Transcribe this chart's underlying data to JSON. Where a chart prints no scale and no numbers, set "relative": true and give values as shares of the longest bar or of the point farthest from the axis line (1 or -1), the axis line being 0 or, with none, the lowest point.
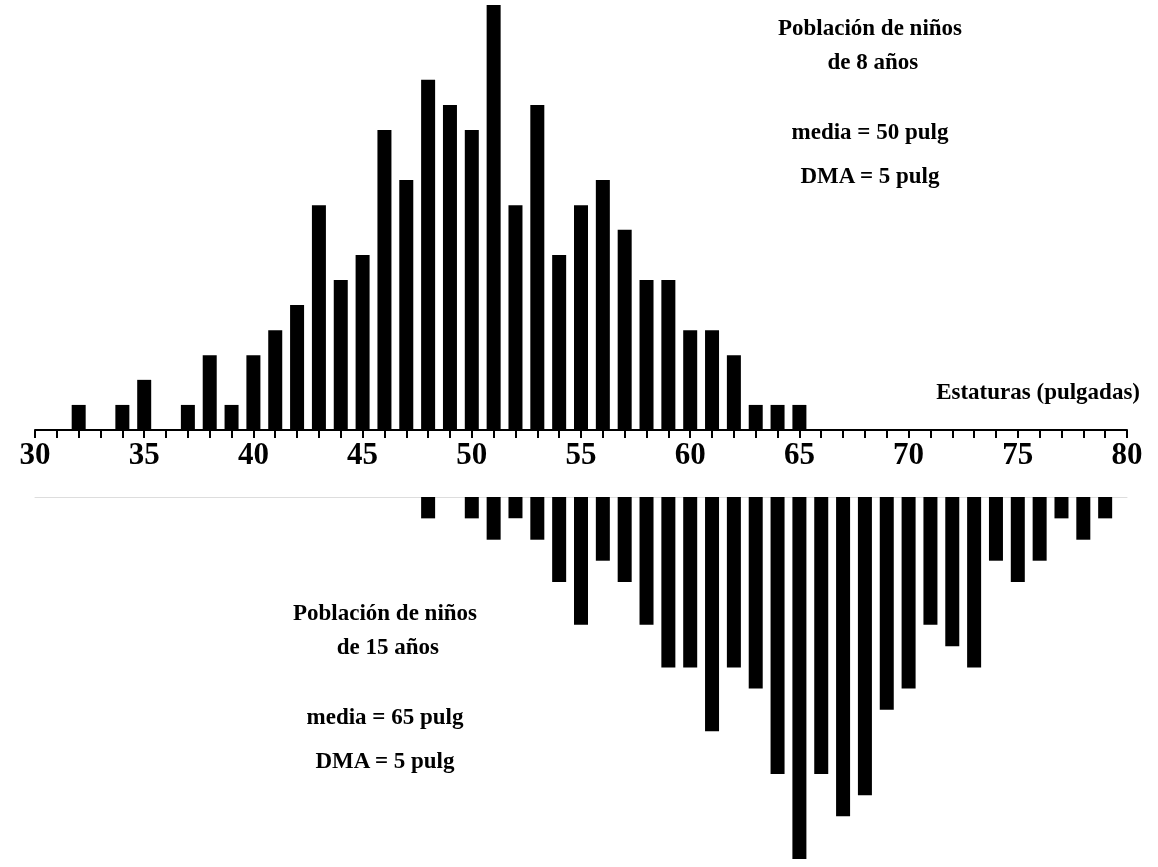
{
  "chart_data": [
    {
      "type": "bar",
      "relative": true,
      "xlabel": "Estaturas (pulgadas)",
      "xlim": [
        30,
        80
      ],
      "xticks": [
        30,
        {
          "value": 31,
          "label": null
        },
        {
          "value": 32,
          "label": null
        },
        {
          "value": 33,
          "label": null
        },
        {
          "value": 34,
          "label": null
        },
        35,
        {
          "value": 36,
          "label": null
        },
        {
          "value": 37,
          "label": null
        },
        {
          "value": 38,
          "label": null
        },
        {
          "value": 39,
          "label": null
        },
        40,
        {
          "value": 41,
          "label": null
        },
        {
          "value": 42,
          "label": null
        },
        {
          "value": 43,
          "label": null
        },
        {
          "value": 44,
          "label": null
        },
        45,
        {
          "value": 46,
          "label": null
        },
        {
          "value": 47,
          "label": null
        },
        {
          "value": 48,
          "label": null
        },
        {
          "value": 49,
          "label": null
        },
        50,
        {
          "value": 51,
          "label": null
        },
        {
          "value": 52,
          "label": null
        },
        {
          "value": 53,
          "label": null
        },
        {
          "value": 54,
          "label": null
        },
        55,
        {
          "value": 56,
          "label": null
        },
        {
          "value": 57,
          "label": null
        },
        {
          "value": 58,
          "label": null
        },
        {
          "value": 59,
          "label": null
        },
        60,
        {
          "value": 61,
          "label": null
        },
        {
          "value": 62,
          "label": null
        },
        {
          "value": 63,
          "label": null
        },
        {
          "value": 64,
          "label": null
        },
        65,
        {
          "value": 66,
          "label": null
        },
        {
          "value": 67,
          "label": null
        },
        {
          "value": 68,
          "label": null
        },
        {
          "value": 69,
          "label": null
        },
        70,
        {
          "value": 71,
          "label": null
        },
        {
          "value": 72,
          "label": null
        },
        {
          "value": 73,
          "label": null
        },
        {
          "value": 74,
          "label": null
        },
        75,
        {
          "value": 76,
          "label": null
        },
        {
          "value": 77,
          "label": null
        },
        {
          "value": 78,
          "label": null
        },
        {
          "value": 79,
          "label": null
        },
        80
      ],
      "annotations": [
        "Población de niños de 8 años",
        "media = 50 pulg",
        "DMA = 5 pulg"
      ],
      "series": [
        {
          "color": "#000000",
          "x": [
            32,
            34,
            35,
            37,
            38,
            39,
            40,
            41,
            42,
            43,
            44,
            45,
            46,
            47,
            48,
            49,
            50,
            51,
            52,
            53,
            54,
            55,
            56,
            57,
            58,
            59,
            60,
            61,
            62,
            63,
            64,
            65
          ],
          "values": [
            0.059,
            0.059,
            0.118,
            0.059,
            0.176,
            0.059,
            0.176,
            0.235,
            0.294,
            0.529,
            0.353,
            0.412,
            0.706,
            0.588,
            0.824,
            0.765,
            0.706,
            1,
            0.529,
            0.765,
            0.412,
            0.529,
            0.588,
            0.471,
            0.353,
            0.353,
            0.235,
            0.235,
            0.176,
            0.059,
            0.059,
            0.059
          ]
        }
      ]
    },
    {
      "type": "bar",
      "relative": true,
      "xlim": [
        30,
        80
      ],
      "tick_labels": false,
      "annotations": [
        "Población de niños de 15 años",
        "media = 65 pulg",
        "DMA = 5 pulg"
      ],
      "series": [
        {
          "color": "#000000",
          "x": [
            48,
            50,
            51,
            52,
            53,
            54,
            55,
            56,
            57,
            58,
            59,
            60,
            61,
            62,
            63,
            64,
            65,
            66,
            67,
            68,
            69,
            70,
            71,
            72,
            73,
            74,
            75,
            76,
            77,
            78,
            79
          ],
          "values": [
            -0.059,
            -0.059,
            -0.118,
            -0.059,
            -0.118,
            -0.235,
            -0.353,
            -0.176,
            -0.235,
            -0.353,
            -0.471,
            -0.471,
            -0.647,
            -0.471,
            -0.529,
            -0.765,
            -1,
            -0.765,
            -0.882,
            -0.824,
            -0.588,
            -0.529,
            -0.353,
            -0.412,
            -0.471,
            -0.176,
            -0.235,
            -0.176,
            -0.059,
            -0.118,
            -0.059
          ]
        }
      ]
    }
  ]
}
